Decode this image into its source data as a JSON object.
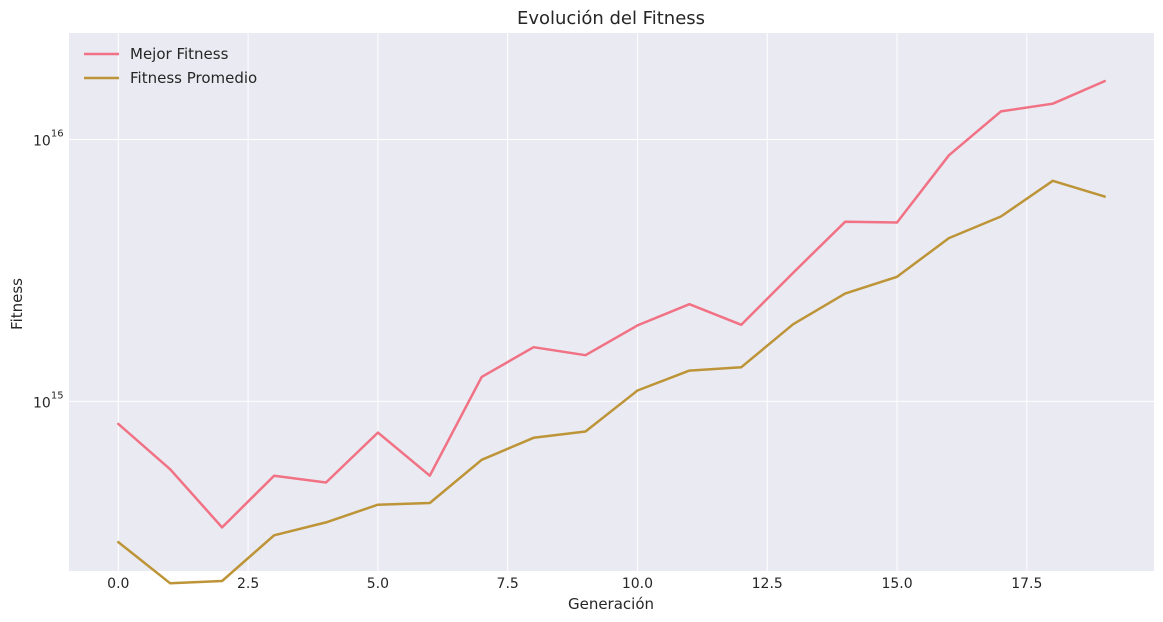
{
  "chart_data": {
    "type": "line",
    "title": "Evolución del Fitness",
    "xlabel": "Generación",
    "ylabel": "Fitness",
    "yscale": "log",
    "xlim": [
      -0.95,
      19.95
    ],
    "ylim": [
      225000000000000.0,
      2.55e+16
    ],
    "grid": true,
    "legend_position": "top-left",
    "x": [
      0,
      1,
      2,
      3,
      4,
      5,
      6,
      7,
      8,
      9,
      10,
      11,
      12,
      13,
      14,
      15,
      16,
      17,
      18,
      19
    ],
    "x_ticks": [
      0,
      2.5,
      5,
      7.5,
      10,
      12.5,
      15,
      17.5
    ],
    "x_tick_labels": [
      "0.0",
      "2.5",
      "5.0",
      "7.5",
      "10.0",
      "12.5",
      "15.0",
      "17.5"
    ],
    "y_ticks": [
      1000000000000000.0,
      1e+16
    ],
    "y_tick_labels": [
      {
        "base": "10",
        "exp": "15"
      },
      {
        "base": "10",
        "exp": "16"
      }
    ],
    "series": [
      {
        "name": "Mejor Fitness",
        "color": "#f07284",
        "values": [
          820000000000000.0,
          550000000000000.0,
          330000000000000.0,
          520000000000000.0,
          490000000000000.0,
          760000000000000.0,
          520000000000000.0,
          1240000000000000.0,
          1610000000000000.0,
          1500000000000000.0,
          1950000000000000.0,
          2350000000000000.0,
          1960000000000000.0,
          3100000000000000.0,
          4850000000000000.0,
          4820000000000000.0,
          8700000000000000.0,
          1.28e+16,
          1.37e+16,
          1.67e+16
        ]
      },
      {
        "name": "Fitness Promedio",
        "color": "#bd9538",
        "values": [
          290000000000000.0,
          202000000000000.0,
          206000000000000.0,
          308000000000000.0,
          345000000000000.0,
          403000000000000.0,
          409000000000000.0,
          598000000000000.0,
          726000000000000.0,
          767000000000000.0,
          1100000000000000.0,
          1310000000000000.0,
          1350000000000000.0,
          1970000000000000.0,
          2580000000000000.0,
          2990000000000000.0,
          4200000000000000.0,
          5080000000000000.0,
          6950000000000000.0,
          6050000000000000.0
        ]
      }
    ]
  }
}
